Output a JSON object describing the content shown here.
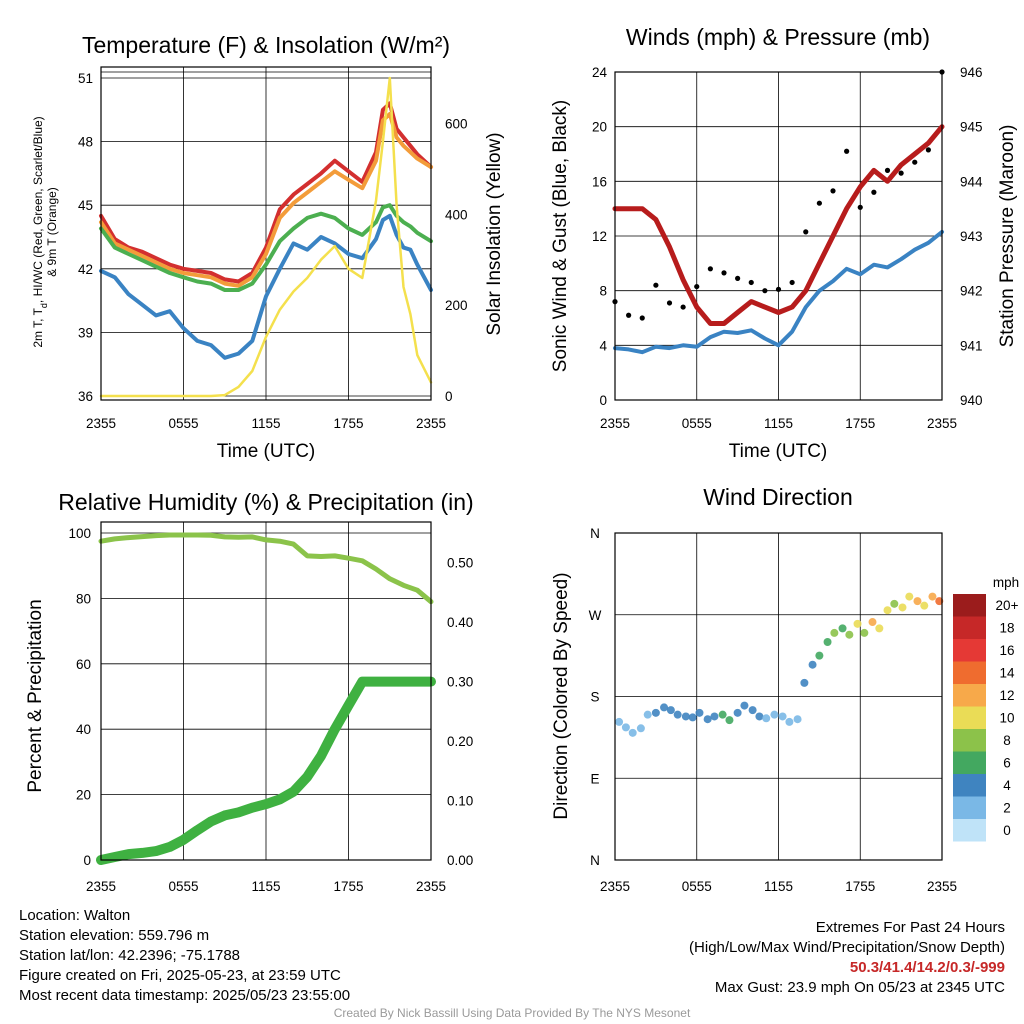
{
  "panels": {
    "temp": {
      "title": "Temperature (F) & Insolation (W/m²)",
      "ylabel_left": "2m T, T",
      "ylabel_left_sub": "d",
      "ylabel_left_rest": ", HI/WC (Red, Green, Scarlet/Blue)",
      "ylabel_left_line2": "& 9m T (Orange)",
      "ylabel_right": "Solar Insolation (Yellow)",
      "xlabel": "Time (UTC)"
    },
    "wind": {
      "title": "Winds (mph) & Pressure (mb)",
      "ylabel_left": "Sonic Wind & Gust (Blue, Black)",
      "ylabel_right": "Station Pressure (Maroon)",
      "xlabel": "Time (UTC)"
    },
    "rh": {
      "title": "Relative Humidity (%) & Precipitation (in)",
      "ylabel_left": "Percent & Precipitation"
    },
    "dir": {
      "title": "Wind Direction",
      "ylabel_left": "Direction (Colored By Speed)",
      "colorbar_title": "mph"
    }
  },
  "chart_data": [
    {
      "type": "line",
      "id": "temperature",
      "x_ticks": [
        "2355",
        "0555",
        "1155",
        "1755",
        "2355"
      ],
      "ylim": [
        36,
        51
      ],
      "y_ticks": [
        36,
        39,
        42,
        45,
        48,
        51
      ],
      "y2lim": [
        0,
        700
      ],
      "y2_ticks": [
        0,
        200,
        400,
        600
      ],
      "x": [
        0,
        1,
        2,
        3,
        4,
        5,
        6,
        7,
        8,
        9,
        10,
        11,
        12,
        13,
        14,
        15,
        16,
        17,
        18,
        19,
        20,
        20.5,
        21,
        21.5,
        22,
        22.5,
        23,
        24
      ],
      "series": [
        {
          "color": "#d32f2f",
          "values": [
            44.5,
            43.4,
            43.0,
            42.8,
            42.5,
            42.2,
            42.0,
            41.9,
            41.8,
            41.5,
            41.4,
            41.8,
            43.0,
            44.8,
            45.5,
            46.0,
            46.5,
            47.1,
            46.6,
            46.1,
            47.5,
            49.5,
            49.8,
            48.6,
            48.2,
            47.8,
            47.4,
            46.8
          ]
        },
        {
          "color": "#f39c3a",
          "values": [
            44.2,
            43.2,
            42.9,
            42.6,
            42.3,
            42.0,
            41.8,
            41.7,
            41.6,
            41.3,
            41.2,
            41.6,
            42.7,
            44.4,
            45.1,
            45.6,
            46.1,
            46.6,
            46.2,
            45.8,
            47.1,
            49.0,
            49.3,
            48.2,
            47.8,
            47.5,
            47.2,
            46.8
          ]
        },
        {
          "color": "#4caf50",
          "values": [
            43.9,
            43.0,
            42.7,
            42.4,
            42.1,
            41.8,
            41.6,
            41.4,
            41.3,
            41.0,
            41.0,
            41.3,
            42.2,
            43.3,
            43.9,
            44.4,
            44.6,
            44.4,
            43.9,
            43.6,
            44.2,
            44.9,
            45.0,
            44.5,
            44.2,
            44.0,
            43.7,
            43.3
          ]
        },
        {
          "color": "#3a83c3",
          "values": [
            41.9,
            41.6,
            40.8,
            40.3,
            39.8,
            40.0,
            39.2,
            38.6,
            38.4,
            37.8,
            38.0,
            38.6,
            40.7,
            42.0,
            43.2,
            42.9,
            43.5,
            43.2,
            42.7,
            42.5,
            43.4,
            44.3,
            44.5,
            43.6,
            43.0,
            42.9,
            42.2,
            41.0
          ]
        },
        {
          "color": "#f4e04d",
          "axis": "right",
          "values": [
            0,
            0,
            0,
            0,
            0,
            0,
            0,
            0,
            0,
            2,
            20,
            55,
            130,
            190,
            230,
            260,
            300,
            330,
            280,
            260,
            430,
            560,
            700,
            420,
            240,
            180,
            90,
            30
          ]
        }
      ]
    },
    {
      "type": "line",
      "id": "winds",
      "x_ticks": [
        "2355",
        "0555",
        "1155",
        "1755",
        "2355"
      ],
      "ylim": [
        0,
        24
      ],
      "y_ticks": [
        0,
        4,
        8,
        12,
        16,
        20,
        24
      ],
      "y2lim": [
        940,
        946
      ],
      "y2_ticks": [
        940,
        941,
        942,
        943,
        944,
        945,
        946
      ],
      "x": [
        0,
        1,
        2,
        3,
        4,
        5,
        6,
        7,
        8,
        9,
        10,
        11,
        12,
        13,
        14,
        15,
        16,
        17,
        18,
        19,
        20,
        21,
        22,
        23,
        24
      ],
      "series": [
        {
          "color": "#3a83c3",
          "type": "line",
          "values": [
            3.8,
            3.7,
            3.5,
            3.9,
            3.8,
            4.0,
            3.9,
            4.6,
            5.0,
            4.9,
            5.1,
            4.5,
            4.0,
            5.0,
            6.8,
            8.0,
            8.7,
            9.6,
            9.2,
            9.9,
            9.7,
            10.3,
            11.0,
            11.5,
            12.3
          ]
        },
        {
          "color": "#000000",
          "type": "scatter",
          "values": [
            7.2,
            6.2,
            6.0,
            8.4,
            7.1,
            6.8,
            8.3,
            9.6,
            9.3,
            8.9,
            8.6,
            8.0,
            8.1,
            8.6,
            12.3,
            14.4,
            15.3,
            18.2,
            14.1,
            15.2,
            16.8,
            16.6,
            17.4,
            18.3,
            24.0
          ]
        },
        {
          "color": "#b71c1c",
          "type": "line",
          "axis": "right",
          "values": [
            943.5,
            943.5,
            943.5,
            943.3,
            942.8,
            942.2,
            941.7,
            941.4,
            941.4,
            941.6,
            941.8,
            941.7,
            941.6,
            941.7,
            942.0,
            942.5,
            943.0,
            943.5,
            943.9,
            944.2,
            944.0,
            944.3,
            944.5,
            944.7,
            945.0
          ]
        }
      ]
    },
    {
      "type": "line",
      "id": "humidity",
      "x_ticks": [
        "2355",
        "0555",
        "1155",
        "1755",
        "2355"
      ],
      "ylim": [
        0,
        100
      ],
      "y_ticks": [
        0,
        20,
        40,
        60,
        80,
        100
      ],
      "y2lim": [
        0,
        0.55
      ],
      "y2_ticks": [
        "0.00",
        "0.10",
        "0.20",
        "0.30",
        "0.40",
        "0.50"
      ],
      "x": [
        0,
        1,
        2,
        3,
        4,
        5,
        6,
        7,
        8,
        9,
        10,
        11,
        12,
        13,
        14,
        15,
        16,
        17,
        18,
        19,
        20,
        21,
        22,
        23,
        24
      ],
      "series": [
        {
          "color": "#8bc34a",
          "values": [
            97.5,
            98.2,
            98.6,
            98.9,
            99.2,
            99.4,
            99.4,
            99.4,
            99.3,
            98.8,
            98.7,
            98.8,
            97.9,
            97.5,
            96.6,
            93.0,
            92.8,
            93.0,
            92.3,
            91.5,
            89.0,
            86.0,
            84.0,
            82.5,
            79.0
          ]
        },
        {
          "color": "#3fb141",
          "axis": "right",
          "values": [
            0.0,
            0.005,
            0.01,
            0.012,
            0.015,
            0.022,
            0.034,
            0.05,
            0.065,
            0.075,
            0.08,
            0.088,
            0.094,
            0.102,
            0.115,
            0.14,
            0.175,
            0.22,
            0.26,
            0.3,
            0.3,
            0.3,
            0.3,
            0.3,
            0.3
          ]
        }
      ]
    },
    {
      "type": "scatter",
      "id": "wind-direction",
      "x_ticks": [
        "2355",
        "0555",
        "1155",
        "1755",
        "2355"
      ],
      "y_ticks": [
        "N",
        "E",
        "S",
        "W",
        "N"
      ],
      "ylim": [
        0,
        360
      ],
      "x": [
        0.3,
        0.8,
        1.3,
        1.9,
        2.4,
        3.0,
        3.6,
        4.1,
        4.6,
        5.2,
        5.7,
        6.2,
        6.8,
        7.3,
        7.9,
        8.4,
        9.0,
        9.5,
        10.1,
        10.6,
        11.1,
        11.7,
        12.3,
        12.8,
        13.4,
        13.9,
        14.5,
        15.0,
        15.6,
        16.1,
        16.7,
        17.2,
        17.8,
        18.3,
        18.9,
        19.4,
        20.0,
        20.5,
        21.1,
        21.6,
        22.2,
        22.7,
        23.3,
        23.8
      ],
      "values": [
        152,
        146,
        140,
        145,
        160,
        162,
        168,
        165,
        160,
        158,
        157,
        162,
        155,
        158,
        160,
        154,
        162,
        170,
        165,
        158,
        156,
        160,
        158,
        152,
        155,
        195,
        215,
        225,
        240,
        250,
        255,
        248,
        260,
        250,
        262,
        255,
        275,
        282,
        278,
        290,
        285,
        280,
        290,
        285
      ],
      "speeds": [
        2,
        2,
        3,
        3,
        3,
        4,
        4,
        4,
        4,
        4,
        4,
        5,
        5,
        5,
        6,
        6,
        5,
        4,
        4,
        4,
        3,
        3,
        3,
        3,
        3,
        4,
        5,
        6,
        7,
        8,
        7,
        9,
        10,
        8,
        12,
        11,
        10,
        9,
        11,
        10,
        12,
        11,
        13,
        14
      ],
      "colorbar": {
        "labels": [
          "20+",
          "18",
          "16",
          "14",
          "12",
          "10",
          "8",
          "6",
          "4",
          "2",
          "0"
        ],
        "colors": [
          "#9b1c1c",
          "#c62828",
          "#e53935",
          "#ef6c2f",
          "#f7a94a",
          "#eadc56",
          "#8cc24a",
          "#43a860",
          "#3f84c0",
          "#7ab8e6",
          "#bfe3f8"
        ]
      }
    }
  ],
  "footer": {
    "left": [
      "Location: Walton",
      "Station elevation: 559.796 m",
      "Station lat/lon: 42.2396; -75.1788",
      "Figure created on Fri, 2025-05-23, at 23:59 UTC",
      "Most recent data timestamp: 2025/05/23 23:55:00"
    ],
    "extremes_title": "Extremes For Past 24 Hours",
    "extremes_subtitle": "(High/Low/Max Wind/Precipitation/Snow Depth)",
    "extremes_values": "50.3/41.4/14.2/0.3/-999",
    "max_gust": "Max Gust: 23.9 mph On 05/23 at 2345 UTC",
    "credit": "Created By Nick Bassill Using Data Provided By The NYS Mesonet"
  }
}
